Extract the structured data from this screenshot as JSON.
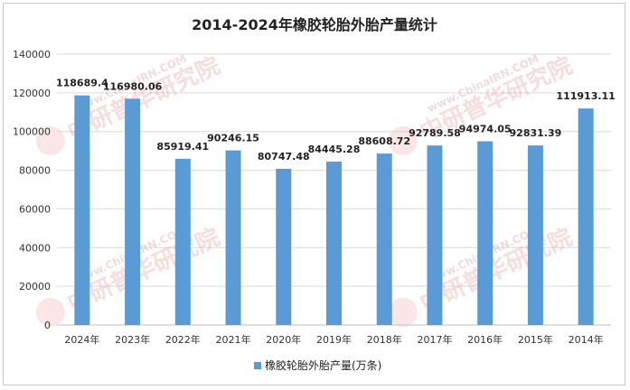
{
  "chart_data": {
    "type": "bar",
    "title": "2014-2024年橡胶轮胎外胎产量统计",
    "categories": [
      "2024年",
      "2023年",
      "2022年",
      "2021年",
      "2020年",
      "2019年",
      "2018年",
      "2017年",
      "2016年",
      "2015年",
      "2014年"
    ],
    "series": [
      {
        "name": "橡胶轮胎外胎产量(万条)",
        "values": [
          118689.4,
          116980.06,
          85919.41,
          90246.15,
          80747.48,
          84445.28,
          88608.72,
          92789.58,
          94974.05,
          92831.39,
          111913.11
        ],
        "labels": [
          "118689.4",
          "116980.06",
          "85919.41",
          "90246.15",
          "80747.48",
          "84445.28",
          "88608.72",
          "92789.58",
          "94974.05",
          "92831.39",
          "111913.11"
        ],
        "color": "#5b9bd5"
      }
    ],
    "ylim": [
      0,
      140000
    ],
    "yticks": [
      0,
      20000,
      40000,
      60000,
      80000,
      100000,
      120000,
      140000
    ],
    "ytick_labels": [
      "0",
      "20000",
      "40000",
      "60000",
      "80000",
      "100000",
      "120000",
      "140000"
    ],
    "grid": true,
    "legend_position": "bottom"
  },
  "watermark": {
    "text_cn": "中研普华研究院",
    "text_en": "www.ChinaIRN.COM"
  }
}
